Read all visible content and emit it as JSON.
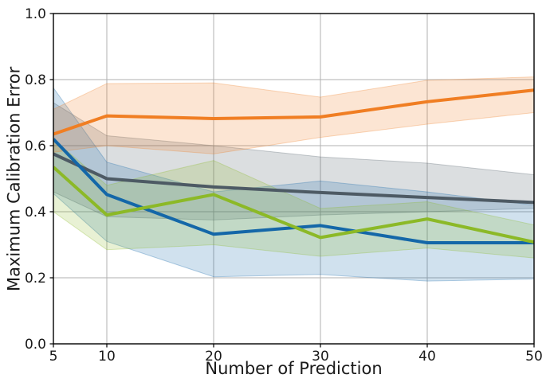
{
  "figure": {
    "background_color": "#ffffff",
    "grid_color": "#b0b0b0",
    "spine_color": "#000000",
    "text_color": "#1a1a1a"
  },
  "chart_data": {
    "type": "line",
    "title": "",
    "xlabel": "Number of Prediction",
    "ylabel": "Maximum Calibration Error",
    "xlim": [
      5,
      50
    ],
    "ylim": [
      0.0,
      1.0
    ],
    "xticks": [
      5,
      10,
      20,
      30,
      40,
      50
    ],
    "xtick_labels": [
      "5",
      "10",
      "20",
      "30",
      "40",
      "50"
    ],
    "yticks": [
      0.0,
      0.2,
      0.4,
      0.6,
      0.8,
      1.0
    ],
    "ytick_labels": [
      "0.0",
      "0.2",
      "0.4",
      "0.6",
      "0.8",
      "1.0"
    ],
    "grid": true,
    "legend": "none",
    "band_opacity": 0.2,
    "x": [
      5,
      10,
      20,
      30,
      40,
      50
    ],
    "series": [
      {
        "name": "gray-series",
        "color": "#4d5a64",
        "values": [
          0.575,
          0.5,
          0.475,
          0.458,
          0.443,
          0.428
        ],
        "band_lo": [
          0.46,
          0.385,
          0.375,
          0.39,
          0.4,
          0.41
        ],
        "band_hi": [
          0.73,
          0.63,
          0.6,
          0.566,
          0.547,
          0.512
        ]
      },
      {
        "name": "blue-series",
        "color": "#1467a8",
        "values": [
          0.62,
          0.452,
          0.332,
          0.358,
          0.306,
          0.306
        ],
        "band_lo": [
          0.455,
          0.31,
          0.203,
          0.21,
          0.19,
          0.196
        ],
        "band_hi": [
          0.775,
          0.55,
          0.46,
          0.493,
          0.46,
          0.42
        ]
      },
      {
        "name": "green-series",
        "color": "#8cb927",
        "values": [
          0.535,
          0.39,
          0.452,
          0.322,
          0.378,
          0.308
        ],
        "band_lo": [
          0.4,
          0.285,
          0.3,
          0.265,
          0.29,
          0.26
        ],
        "band_hi": [
          0.62,
          0.48,
          0.555,
          0.41,
          0.43,
          0.36
        ]
      },
      {
        "name": "orange-series",
        "color": "#f07e23",
        "values": [
          0.635,
          0.69,
          0.682,
          0.687,
          0.733,
          0.768
        ],
        "band_lo": [
          0.58,
          0.6,
          0.575,
          0.625,
          0.665,
          0.7
        ],
        "band_hi": [
          0.71,
          0.788,
          0.79,
          0.747,
          0.798,
          0.808
        ]
      }
    ]
  }
}
